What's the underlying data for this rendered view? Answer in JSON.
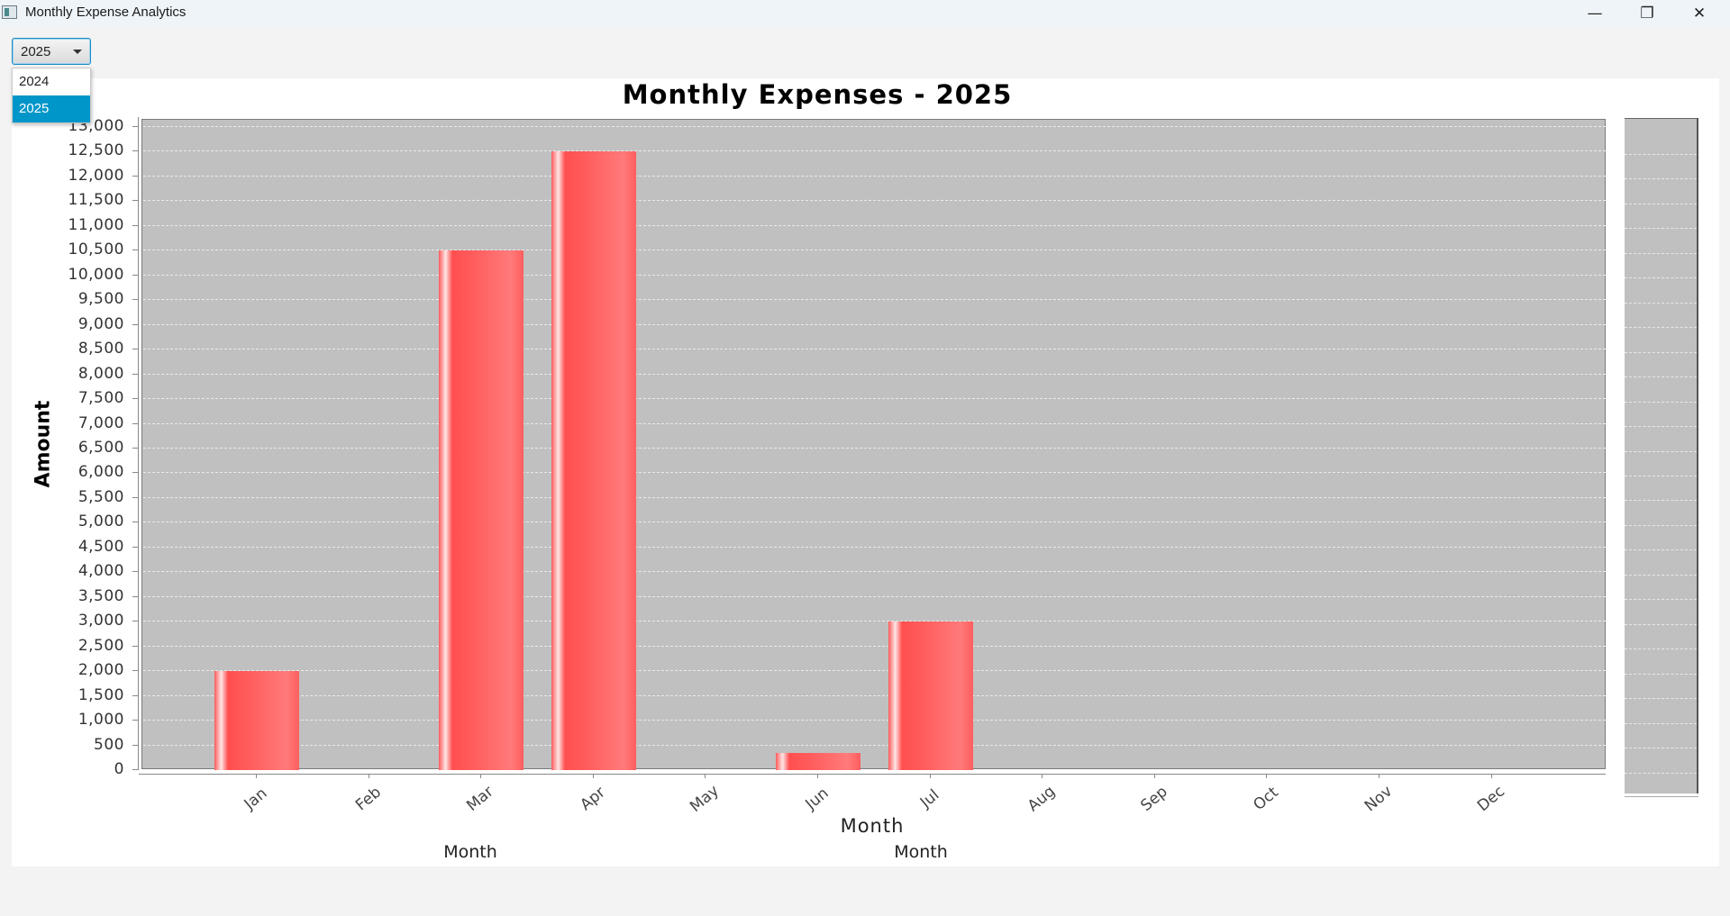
{
  "window": {
    "title": "Monthly Expense Analytics",
    "minimize_glyph": "—",
    "maximize_glyph": "❐",
    "close_glyph": "✕"
  },
  "year_selector": {
    "selected": "2025",
    "options": [
      "2024",
      "2025"
    ]
  },
  "chart_data": {
    "type": "bar",
    "title": "Monthly Expenses - 2025",
    "xlabel": "Month",
    "ylabel": "Amount",
    "categories": [
      "Jan",
      "Feb",
      "Mar",
      "Apr",
      "May",
      "Jun",
      "Jul",
      "Aug",
      "Sep",
      "Oct",
      "Nov",
      "Dec"
    ],
    "values": [
      2000,
      0,
      10500,
      12500,
      0,
      350,
      3000,
      0,
      0,
      0,
      0,
      0
    ],
    "ylim": [
      0,
      13000
    ],
    "yticks": [
      "0",
      "500",
      "1,000",
      "1,500",
      "2,000",
      "2,500",
      "3,000",
      "3,500",
      "4,000",
      "4,500",
      "5,000",
      "5,500",
      "6,000",
      "6,500",
      "7,000",
      "7,500",
      "8,000",
      "8,500",
      "9,000",
      "9,500",
      "10,000",
      "10,500",
      "11,000",
      "11,500",
      "12,000",
      "12,500",
      "13,000"
    ],
    "grid": true,
    "bar_color": "#ff5a5a",
    "plot_background": "#c0c0c0",
    "extra_labels": [
      "Month",
      "Month"
    ]
  }
}
